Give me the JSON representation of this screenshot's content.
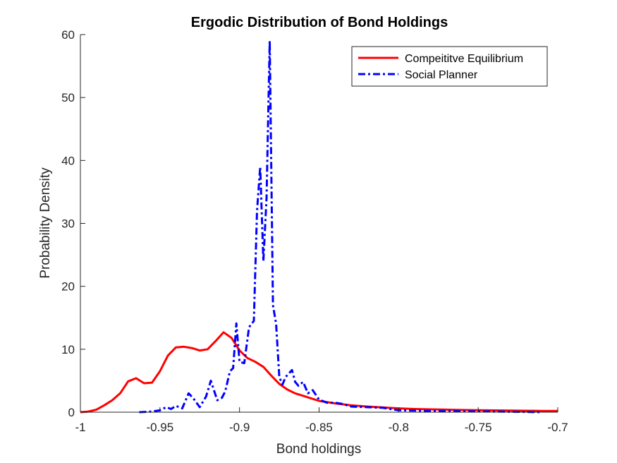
{
  "chart_data": {
    "type": "line",
    "title": "Ergodic Distribution of Bond Holdings",
    "xlabel": "Bond holdings",
    "ylabel": "Probability Density",
    "xlim": [
      -1,
      -0.7
    ],
    "ylim": [
      0,
      60
    ],
    "xticks": [
      -1,
      -0.95,
      -0.9,
      -0.85,
      -0.8,
      -0.75,
      -0.7
    ],
    "xtick_labels": [
      "-1",
      "-0.95",
      "-0.9",
      "-0.85",
      "-0.8",
      "-0.75",
      "-0.7"
    ],
    "yticks": [
      0,
      10,
      20,
      30,
      40,
      50,
      60
    ],
    "ytick_labels": [
      "0",
      "10",
      "20",
      "30",
      "40",
      "50",
      "60"
    ],
    "grid": false,
    "legend_position": "top-right",
    "series": [
      {
        "name": "Compeititve Equilibrium",
        "color": "#ff0000",
        "style": "solid",
        "x": [
          -1.0,
          -0.995,
          -0.99,
          -0.985,
          -0.98,
          -0.975,
          -0.97,
          -0.965,
          -0.96,
          -0.955,
          -0.95,
          -0.945,
          -0.94,
          -0.935,
          -0.93,
          -0.925,
          -0.92,
          -0.915,
          -0.91,
          -0.905,
          -0.9,
          -0.895,
          -0.89,
          -0.885,
          -0.88,
          -0.875,
          -0.87,
          -0.865,
          -0.86,
          -0.855,
          -0.85,
          -0.84,
          -0.83,
          -0.82,
          -0.81,
          -0.8,
          -0.79,
          -0.78,
          -0.77,
          -0.76,
          -0.75,
          -0.74,
          -0.73,
          -0.72,
          -0.71,
          -0.7
        ],
        "y": [
          0.0,
          0.1,
          0.4,
          1.1,
          1.9,
          3.0,
          4.9,
          5.4,
          4.6,
          4.7,
          6.5,
          9.0,
          10.3,
          10.4,
          10.2,
          9.8,
          10.0,
          11.3,
          12.7,
          11.8,
          9.8,
          8.6,
          8.0,
          7.2,
          5.8,
          4.5,
          3.6,
          3.0,
          2.6,
          2.2,
          1.8,
          1.4,
          1.1,
          0.9,
          0.75,
          0.6,
          0.5,
          0.45,
          0.4,
          0.35,
          0.3,
          0.28,
          0.25,
          0.22,
          0.2,
          0.2
        ]
      },
      {
        "name": "Social Planner",
        "color": "#0000ff",
        "style": "dashdot",
        "x": [
          -0.963,
          -0.955,
          -0.95,
          -0.946,
          -0.943,
          -0.94,
          -0.936,
          -0.932,
          -0.929,
          -0.925,
          -0.921,
          -0.918,
          -0.914,
          -0.911,
          -0.909,
          -0.906,
          -0.904,
          -0.902,
          -0.9,
          -0.897,
          -0.894,
          -0.891,
          -0.889,
          -0.887,
          -0.885,
          -0.883,
          -0.881,
          -0.879,
          -0.877,
          -0.875,
          -0.873,
          -0.871,
          -0.867,
          -0.865,
          -0.863,
          -0.86,
          -0.857,
          -0.854,
          -0.85,
          -0.845,
          -0.84,
          -0.835,
          -0.83,
          -0.82,
          -0.81,
          -0.8,
          -0.78,
          -0.76,
          -0.74,
          -0.72,
          -0.71
        ],
        "y": [
          0.0,
          0.1,
          0.3,
          0.8,
          0.5,
          1.0,
          0.6,
          3.0,
          2.2,
          0.8,
          2.5,
          5.0,
          1.9,
          2.3,
          3.3,
          6.5,
          7.0,
          14.1,
          8.0,
          7.8,
          13.5,
          14.5,
          32.0,
          39.0,
          24.0,
          34.0,
          59.0,
          17.0,
          14.0,
          5.6,
          4.4,
          5.6,
          6.7,
          4.8,
          4.2,
          4.8,
          3.0,
          3.5,
          2.0,
          1.5,
          1.5,
          1.3,
          0.9,
          0.8,
          0.7,
          0.3,
          0.2,
          0.15,
          0.1,
          0.05,
          0.0
        ]
      }
    ]
  }
}
